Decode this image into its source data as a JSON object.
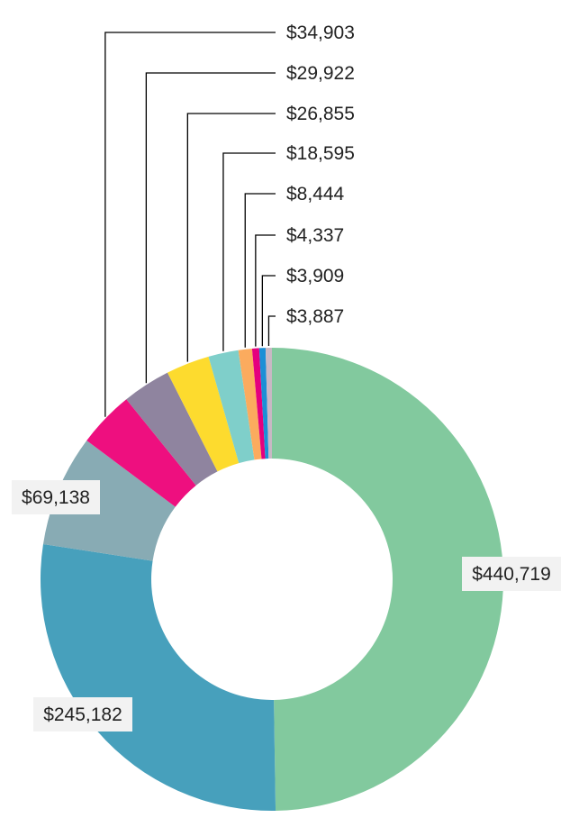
{
  "chart_data": {
    "type": "pie",
    "subtype": "donut",
    "title": "",
    "values": [
      440719,
      245182,
      69138,
      34903,
      29922,
      26855,
      18595,
      8444,
      4337,
      3909,
      3887
    ],
    "labels": [
      "$440,719",
      "$245,182",
      "$69,138",
      "$34,903",
      "$29,922",
      "$26,855",
      "$18,595",
      "$8,444",
      "$4,337",
      "$3,909",
      "$3,887"
    ],
    "colors": [
      "#82c99e",
      "#47a0bc",
      "#88abb4",
      "#ee0f7f",
      "#8f849f",
      "#fddb2e",
      "#7fcfca",
      "#fbab5e",
      "#e5007e",
      "#1b8fd6",
      "#c8b8c4"
    ],
    "legend": "none"
  }
}
